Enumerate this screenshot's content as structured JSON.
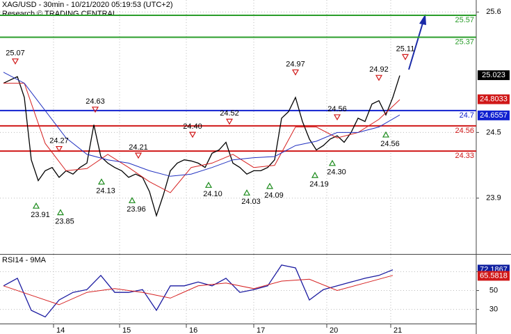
{
  "chart_data": [
    {
      "type": "line",
      "title": "XAG/USD - 30min - 10/21/2020 05:19:53 (UTC+2)",
      "subtitle": "Research © TRADING CENTRAL",
      "xlim": [
        0,
        136
      ],
      "xticks": [
        {
          "value": 14.4,
          "label": "14"
        },
        {
          "value": 33.4,
          "label": "15"
        },
        {
          "value": 52.6,
          "label": "16"
        },
        {
          "value": 72,
          "label": "17"
        },
        {
          "value": 93,
          "label": "20"
        },
        {
          "value": 111.4,
          "label": "21"
        }
      ],
      "ylim": [
        23.39,
        25.71
      ],
      "yticks": [
        25.6,
        24.5,
        23.9
      ],
      "grid": true,
      "series": [
        {
          "color": "#000000",
          "x": [
            0,
            2,
            4,
            6,
            8,
            10,
            12,
            14,
            16,
            18,
            20,
            22,
            24,
            26,
            28,
            30,
            32,
            34,
            36,
            38,
            40,
            42,
            44,
            46,
            48,
            50,
            52,
            54,
            56,
            58,
            60,
            62,
            64,
            66,
            68,
            70,
            72,
            74,
            76,
            78,
            80,
            82,
            84,
            86,
            88,
            90,
            92,
            94,
            96,
            98,
            100,
            102,
            104,
            106,
            108,
            110,
            112,
            114
          ],
          "values": [
            24.95,
            24.98,
            25.01,
            24.82,
            24.25,
            24.06,
            24.15,
            24.18,
            24.09,
            24.15,
            24.12,
            24.18,
            24.22,
            24.57,
            24.28,
            24.22,
            24.18,
            24.15,
            24.09,
            24.12,
            24.09,
            23.96,
            23.74,
            23.93,
            24.15,
            24.22,
            24.25,
            24.24,
            24.22,
            24.18,
            24.31,
            24.34,
            24.41,
            24.22,
            24.18,
            24.12,
            24.15,
            24.15,
            24.18,
            24.25,
            24.63,
            24.69,
            24.82,
            24.6,
            24.44,
            24.34,
            24.38,
            24.44,
            24.47,
            24.41,
            24.5,
            24.63,
            24.6,
            24.76,
            24.79,
            24.66,
            24.82,
            25.02
          ]
        },
        {
          "color": "#d62020",
          "x": [
            0,
            6,
            12,
            18,
            24,
            30,
            36,
            42,
            48,
            54,
            60,
            66,
            72,
            78,
            84,
            90,
            96,
            102,
            108,
            114
          ],
          "values": [
            24.95,
            24.95,
            24.4,
            24.15,
            24.17,
            24.3,
            24.18,
            24.05,
            23.95,
            24.18,
            24.22,
            24.3,
            24.18,
            24.2,
            24.55,
            24.55,
            24.45,
            24.5,
            24.62,
            24.8
          ]
        },
        {
          "color": "#2030c0",
          "x": [
            0,
            6,
            12,
            18,
            24,
            30,
            36,
            42,
            48,
            54,
            60,
            66,
            72,
            78,
            84,
            90,
            96,
            102,
            108,
            114
          ],
          "values": [
            25.05,
            24.95,
            24.7,
            24.45,
            24.3,
            24.25,
            24.22,
            24.15,
            24.1,
            24.12,
            24.18,
            24.25,
            24.27,
            24.28,
            24.38,
            24.42,
            24.5,
            24.5,
            24.55,
            24.66
          ]
        }
      ],
      "levels": [
        {
          "value": 25.57,
          "color": "#2a9d2a"
        },
        {
          "value": 25.37,
          "color": "#2a9d2a"
        },
        {
          "value": 24.7,
          "color": "#1020d0"
        },
        {
          "value": 24.56,
          "color": "#d01818"
        },
        {
          "value": 24.33,
          "color": "#d01818"
        }
      ],
      "tags": [
        {
          "value": 25.023,
          "color": "#000000"
        },
        {
          "value": 24.8033,
          "color": "#d01818"
        },
        {
          "value": 24.6557,
          "color": "#1020d0"
        }
      ],
      "highs": [
        {
          "t": 3.4,
          "price": {
            "value": 25.07,
            "label": "25.07"
          }
        },
        {
          "t": 16,
          "price": {
            "value": 24.27,
            "label": "24.27"
          }
        },
        {
          "t": 26.4,
          "price": {
            "value": 24.63,
            "label": "24.63"
          }
        },
        {
          "t": 38.8,
          "price": {
            "value": 24.21,
            "label": "24.21"
          }
        },
        {
          "t": 54.4,
          "price": {
            "value": 24.4,
            "label": "24.40"
          }
        },
        {
          "t": 65,
          "price": {
            "value": 24.52,
            "label": "24.52"
          }
        },
        {
          "t": 84,
          "price": {
            "value": 24.97,
            "label": "24.97"
          }
        },
        {
          "t": 96,
          "price": {
            "value": 24.56,
            "label": "24.56"
          }
        },
        {
          "t": 108,
          "price": {
            "value": 24.92,
            "label": "24.92"
          }
        },
        {
          "t": 115.6,
          "price": {
            "value": 25.11,
            "label": "25.11"
          }
        }
      ],
      "lows": [
        {
          "t": 9.4,
          "price": {
            "value": 23.91,
            "label": "23.91"
          }
        },
        {
          "t": 16.4,
          "price": {
            "value": 23.85,
            "label": "23.85"
          }
        },
        {
          "t": 28.2,
          "price": {
            "value": 24.13,
            "label": "24.13"
          }
        },
        {
          "t": 37,
          "price": {
            "value": 23.96,
            "label": "23.96"
          }
        },
        {
          "t": 59,
          "price": {
            "value": 24.1,
            "label": "24.10"
          }
        },
        {
          "t": 70,
          "price": {
            "value": 24.03,
            "label": "24.03"
          }
        },
        {
          "t": 76.6,
          "price": {
            "value": 24.09,
            "label": "24.09"
          }
        },
        {
          "t": 89.6,
          "price": {
            "value": 24.19,
            "label": "24.19"
          }
        },
        {
          "t": 94.6,
          "price": {
            "value": 24.3,
            "label": "24.30"
          }
        },
        {
          "t": 110,
          "price": {
            "value": 24.56,
            "label": "24.56"
          }
        }
      ]
    },
    {
      "type": "line",
      "title": "RSI14 - 9MA",
      "xlim": [
        0,
        136
      ],
      "ylim": [
        15,
        88
      ],
      "yticks": [
        70,
        50,
        30
      ],
      "grid": true,
      "series": [
        {
          "color": "#1a1aa0",
          "x": [
            0,
            4,
            8,
            12,
            16,
            20,
            24,
            28,
            32,
            36,
            40,
            44,
            48,
            52,
            56,
            60,
            64,
            68,
            72,
            76,
            80,
            84,
            88,
            92,
            96,
            100,
            104,
            108,
            112
          ],
          "values": [
            55,
            63,
            29,
            22,
            40,
            48,
            51,
            66,
            48,
            48,
            51,
            29,
            55,
            55,
            59,
            55,
            63,
            48,
            51,
            55,
            77,
            74,
            40,
            51,
            55,
            59,
            63,
            66,
            72
          ]
        },
        {
          "color": "#d62020",
          "x": [
            0,
            8,
            16,
            24,
            32,
            40,
            48,
            56,
            64,
            72,
            80,
            88,
            96,
            104,
            112
          ],
          "values": [
            55,
            45,
            35,
            48,
            52,
            48,
            42,
            55,
            58,
            52,
            60,
            62,
            50,
            58,
            66
          ]
        }
      ],
      "tags": [
        {
          "value": 72.1867,
          "color": "#1020a0"
        },
        {
          "value": 65.5818,
          "color": "#d01818"
        }
      ]
    }
  ]
}
